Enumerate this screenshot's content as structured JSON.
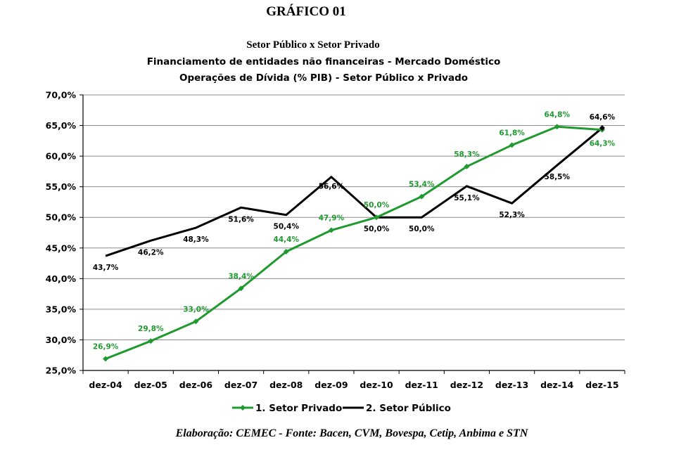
{
  "page": {
    "heading": "GRÁFICO 01",
    "source": "Elaboração: CEMEC - Fonte: Bacen, CVM, Bovespa, Cetip, Anbima e STN"
  },
  "chart_data": {
    "type": "line",
    "title": "Setor Público x Setor Privado",
    "subtitle_1": "Financiamento de entidades não financeiras - Mercado Doméstico",
    "subtitle_2": "Operações de Dívida (% PIB) - Setor Público x Privado",
    "categories": [
      "dez-04",
      "dez-05",
      "dez-06",
      "dez-07",
      "dez-08",
      "dez-09",
      "dez-10",
      "dez-11",
      "dez-12",
      "dez-13",
      "dez-14",
      "dez-15"
    ],
    "y_ticks": [
      "25,0%",
      "30,0%",
      "35,0%",
      "40,0%",
      "45,0%",
      "50,0%",
      "55,0%",
      "60,0%",
      "65,0%",
      "70,0%"
    ],
    "ylim": [
      25,
      70
    ],
    "grid": "horizontal",
    "legend_position": "bottom",
    "series": [
      {
        "name": "1. Setor Privado",
        "color": "#1f9a2f",
        "marker": "diamond",
        "values": [
          26.9,
          29.8,
          33.0,
          38.4,
          44.4,
          47.9,
          50.0,
          53.4,
          58.3,
          61.8,
          64.8,
          64.3
        ],
        "labels": [
          "26,9%",
          "29,8%",
          "33,0%",
          "38,4%",
          "44,4%",
          "47,9%",
          "50,0%",
          "53,4%",
          "58,3%",
          "61,8%",
          "64,8%",
          "64,3%"
        ]
      },
      {
        "name": "2. Setor Público",
        "color": "#000000",
        "marker": "none",
        "values": [
          43.7,
          46.2,
          48.3,
          51.6,
          50.4,
          56.6,
          50.0,
          50.0,
          55.1,
          52.3,
          58.5,
          64.6
        ],
        "labels": [
          "43,7%",
          "46,2%",
          "48,3%",
          "51,6%",
          "50,4%",
          "56,6%",
          "50,0%",
          "50,0%",
          "55,1%",
          "52,3%",
          "58,5%",
          "64,6%"
        ]
      }
    ]
  }
}
